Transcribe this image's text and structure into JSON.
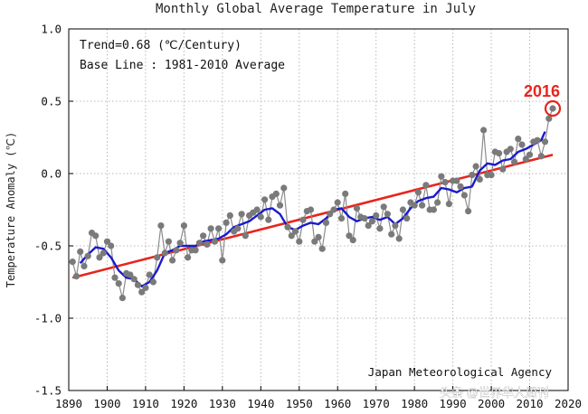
{
  "chart_data": {
    "type": "line",
    "title": "Monthly Global Average Temperature in July",
    "xlabel": "",
    "ylabel": "Temperature Anomaly (℃)",
    "xlim": [
      1890,
      2020
    ],
    "ylim": [
      -1.5,
      1.0
    ],
    "x_ticks": [
      1890,
      1900,
      1910,
      1920,
      1930,
      1940,
      1950,
      1960,
      1970,
      1980,
      1990,
      2000,
      2010,
      2020
    ],
    "y_ticks": [
      1.0,
      0.5,
      0.0,
      -0.5,
      -1.0,
      -1.5
    ],
    "y_tick_labels": [
      "1.0",
      "0.5",
      "0.0",
      "-0.5",
      "-1.0",
      "-1.5"
    ],
    "grid": true,
    "annotations": {
      "trend": "Trend=0.68 (℃/Century)",
      "baseline": "Base Line : 1981-2010 Average",
      "credit": "Japan Meteorological Agency",
      "highlight_label": "2016",
      "watermark": "头条 @世界华人周刊"
    },
    "colors": {
      "series": "#7a7a7a",
      "running_mean": "#1a1acc",
      "trend": "#e8241c",
      "highlight": "#e8241c",
      "grid": "#b8b8b8"
    },
    "series": [
      {
        "name": "Annual July anomaly",
        "x": [
          1891,
          1892,
          1893,
          1894,
          1895,
          1896,
          1897,
          1898,
          1899,
          1900,
          1901,
          1902,
          1903,
          1904,
          1905,
          1906,
          1907,
          1908,
          1909,
          1910,
          1911,
          1912,
          1913,
          1914,
          1915,
          1916,
          1917,
          1918,
          1919,
          1920,
          1921,
          1922,
          1923,
          1924,
          1925,
          1926,
          1927,
          1928,
          1929,
          1930,
          1931,
          1932,
          1933,
          1934,
          1935,
          1936,
          1937,
          1938,
          1939,
          1940,
          1941,
          1942,
          1943,
          1944,
          1945,
          1946,
          1947,
          1948,
          1949,
          1950,
          1951,
          1952,
          1953,
          1954,
          1955,
          1956,
          1957,
          1958,
          1959,
          1960,
          1961,
          1962,
          1963,
          1964,
          1965,
          1966,
          1967,
          1968,
          1969,
          1970,
          1971,
          1972,
          1973,
          1974,
          1975,
          1976,
          1977,
          1978,
          1979,
          1980,
          1981,
          1982,
          1983,
          1984,
          1985,
          1986,
          1987,
          1988,
          1989,
          1990,
          1991,
          1992,
          1993,
          1994,
          1995,
          1996,
          1997,
          1998,
          1999,
          2000,
          2001,
          2002,
          2003,
          2004,
          2005,
          2006,
          2007,
          2008,
          2009,
          2010,
          2011,
          2012,
          2013,
          2014,
          2015,
          2016
        ],
        "values": [
          -0.61,
          -0.71,
          -0.54,
          -0.64,
          -0.57,
          -0.41,
          -0.43,
          -0.58,
          -0.55,
          -0.47,
          -0.5,
          -0.72,
          -0.76,
          -0.86,
          -0.69,
          -0.7,
          -0.73,
          -0.77,
          -0.82,
          -0.79,
          -0.7,
          -0.75,
          -0.58,
          -0.36,
          -0.55,
          -0.47,
          -0.6,
          -0.53,
          -0.48,
          -0.36,
          -0.58,
          -0.53,
          -0.53,
          -0.48,
          -0.43,
          -0.49,
          -0.38,
          -0.47,
          -0.38,
          -0.6,
          -0.34,
          -0.29,
          -0.4,
          -0.38,
          -0.28,
          -0.43,
          -0.29,
          -0.27,
          -0.25,
          -0.3,
          -0.18,
          -0.32,
          -0.16,
          -0.14,
          -0.22,
          -0.1,
          -0.37,
          -0.43,
          -0.4,
          -0.47,
          -0.32,
          -0.26,
          -0.25,
          -0.47,
          -0.44,
          -0.52,
          -0.34,
          -0.28,
          -0.25,
          -0.2,
          -0.31,
          -0.14,
          -0.43,
          -0.46,
          -0.24,
          -0.3,
          -0.31,
          -0.36,
          -0.33,
          -0.29,
          -0.38,
          -0.23,
          -0.28,
          -0.42,
          -0.36,
          -0.45,
          -0.25,
          -0.31,
          -0.2,
          -0.22,
          -0.13,
          -0.22,
          -0.08,
          -0.25,
          -0.25,
          -0.2,
          -0.02,
          -0.06,
          -0.21,
          -0.05,
          -0.05,
          -0.09,
          -0.15,
          -0.26,
          -0.01,
          0.05,
          -0.04,
          0.3,
          -0.01,
          -0.01,
          0.15,
          0.14,
          0.03,
          0.15,
          0.17,
          0.08,
          0.24,
          0.2,
          0.1,
          0.13,
          0.22,
          0.23,
          0.12,
          0.22,
          0.38,
          0.45
        ]
      },
      {
        "name": "5-year running mean",
        "x": [
          1893,
          1895,
          1897,
          1899,
          1901,
          1903,
          1905,
          1907,
          1909,
          1911,
          1913,
          1915,
          1917,
          1919,
          1921,
          1923,
          1925,
          1927,
          1929,
          1931,
          1933,
          1935,
          1937,
          1939,
          1941,
          1943,
          1945,
          1947,
          1949,
          1951,
          1953,
          1955,
          1957,
          1959,
          1961,
          1963,
          1965,
          1967,
          1969,
          1971,
          1973,
          1975,
          1977,
          1979,
          1981,
          1983,
          1985,
          1987,
          1989,
          1991,
          1993,
          1995,
          1997,
          1999,
          2001,
          2003,
          2005,
          2007,
          2009,
          2011,
          2013,
          2014
        ],
        "values": [
          -0.62,
          -0.56,
          -0.51,
          -0.52,
          -0.58,
          -0.67,
          -0.72,
          -0.73,
          -0.78,
          -0.75,
          -0.67,
          -0.55,
          -0.53,
          -0.5,
          -0.5,
          -0.5,
          -0.47,
          -0.46,
          -0.45,
          -0.42,
          -0.37,
          -0.35,
          -0.33,
          -0.29,
          -0.25,
          -0.24,
          -0.28,
          -0.37,
          -0.39,
          -0.36,
          -0.34,
          -0.35,
          -0.31,
          -0.25,
          -0.24,
          -0.3,
          -0.33,
          -0.31,
          -0.3,
          -0.32,
          -0.3,
          -0.35,
          -0.31,
          -0.24,
          -0.19,
          -0.17,
          -0.16,
          -0.1,
          -0.11,
          -0.13,
          -0.1,
          -0.09,
          0.02,
          0.07,
          0.06,
          0.09,
          0.1,
          0.15,
          0.17,
          0.2,
          0.23,
          0.29
        ]
      },
      {
        "name": "Linear trend",
        "x": [
          1891,
          2016
        ],
        "values": [
          -0.72,
          0.13
        ]
      }
    ],
    "highlight_point": {
      "x": 2016,
      "y": 0.45
    }
  }
}
